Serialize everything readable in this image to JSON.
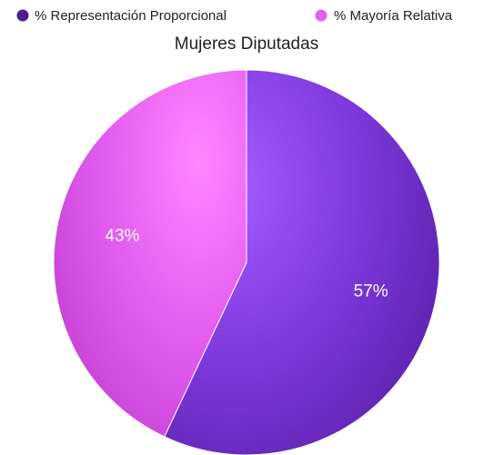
{
  "chart_data": {
    "type": "pie",
    "title": "Mujeres Diputadas",
    "legend_position": "top",
    "slices": [
      {
        "label": "% Representación Proporcional",
        "value": 57,
        "display": "57%",
        "color": "#7a35d6"
      },
      {
        "label": "% Mayoría Relativa",
        "value": 43,
        "display": "43%",
        "color": "#e35ef0"
      }
    ]
  }
}
